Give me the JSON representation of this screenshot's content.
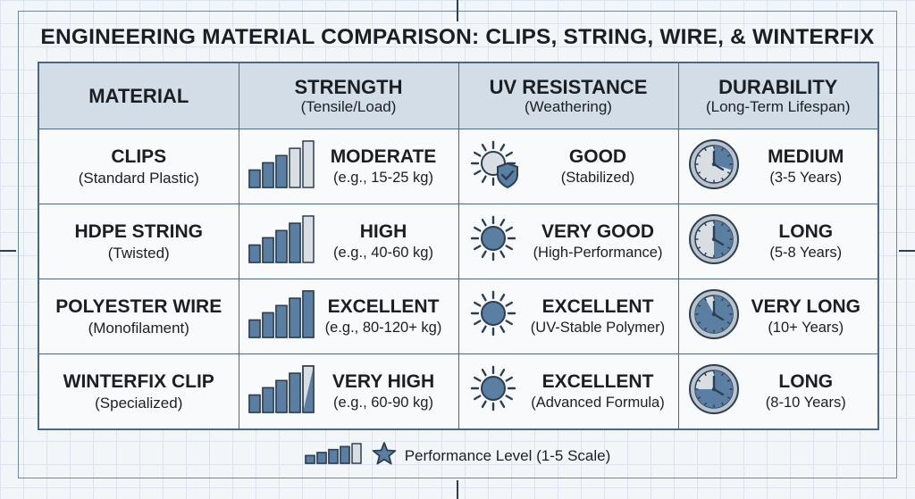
{
  "title": "ENGINEERING MATERIAL COMPARISON: CLIPS, STRING, WIRE, & WINTERFIX",
  "colors": {
    "bar_filled": "#5b7ea3",
    "bar_empty": "#d9dee3",
    "outline": "#2d3e52",
    "header_bg": "#d3dde7"
  },
  "headers": [
    {
      "title": "MATERIAL",
      "subtitle": ""
    },
    {
      "title": "STRENGTH",
      "subtitle": "(Tensile/Load)"
    },
    {
      "title": "UV RESISTANCE",
      "subtitle": "(Weathering)"
    },
    {
      "title": "DURABILITY",
      "subtitle": "(Long-Term Lifespan)"
    }
  ],
  "rows": [
    {
      "material": "CLIPS",
      "material_sub": "(Standard Plastic)",
      "strength": {
        "rating": "MODERATE",
        "detail": "(e.g., 15-25 kg)",
        "level": 3,
        "icon": "bar-level-icon"
      },
      "uv": {
        "rating": "GOOD",
        "detail": "(Stabilized)",
        "icon": "sun-shield-icon"
      },
      "durability": {
        "rating": "MEDIUM",
        "detail": "(3-5 Years)",
        "fill": 0.3,
        "icon": "clock-icon"
      }
    },
    {
      "material": "HDPE STRING",
      "material_sub": "(Twisted)",
      "strength": {
        "rating": "HIGH",
        "detail": "(e.g., 40-60 kg)",
        "level": 4,
        "icon": "bar-level-icon"
      },
      "uv": {
        "rating": "VERY GOOD",
        "detail": "(High-Performance)",
        "icon": "sun-icon"
      },
      "durability": {
        "rating": "LONG",
        "detail": "(5-8 Years)",
        "fill": 0.5,
        "icon": "clock-icon"
      }
    },
    {
      "material": "POLYESTER WIRE",
      "material_sub": "(Monofilament)",
      "strength": {
        "rating": "EXCELLENT",
        "detail": "(e.g., 80-120+ kg)",
        "level": 5,
        "icon": "bar-level-icon"
      },
      "uv": {
        "rating": "EXCELLENT",
        "detail": "(UV-Stable Polymer)",
        "icon": "sun-icon"
      },
      "durability": {
        "rating": "VERY LONG",
        "detail": "(10+ Years)",
        "fill": 0.92,
        "icon": "clock-icon"
      }
    },
    {
      "material": "WINTERFIX CLIP",
      "material_sub": "(Specialized)",
      "strength": {
        "rating": "VERY HIGH",
        "detail": "(e.g., 60-90 kg)",
        "level": 4.5,
        "icon": "bar-level-icon"
      },
      "uv": {
        "rating": "EXCELLENT",
        "detail": "(Advanced Formula)",
        "icon": "sun-icon"
      },
      "durability": {
        "rating": "LONG",
        "detail": "(8-10 Years)",
        "fill": 0.75,
        "icon": "clock-icon"
      }
    }
  ],
  "legend": {
    "text": "Performance Level (1-5 Scale)",
    "bars_icon": "bar-level-icon",
    "star_icon": "star-icon"
  }
}
